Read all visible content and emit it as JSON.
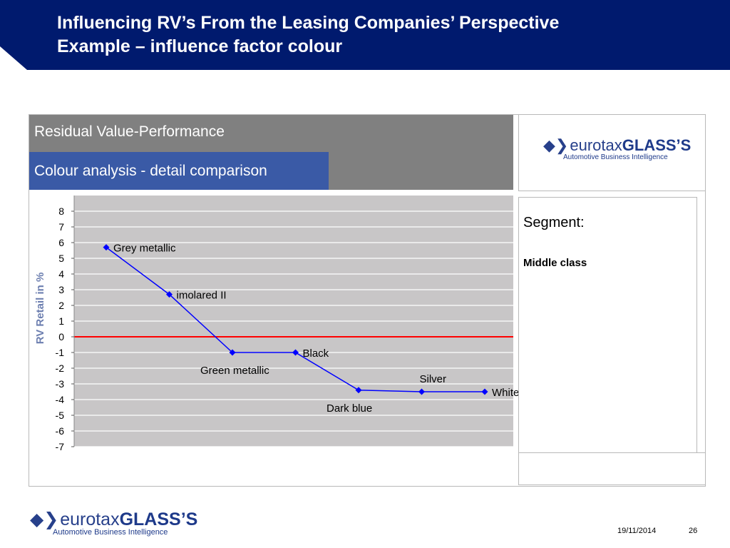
{
  "slide": {
    "title_line1": "Influencing RV’s From the Leasing Companies’ Perspective",
    "title_line2": "Example – influence factor colour",
    "date": "19/11/2014",
    "page_number": "26"
  },
  "panel": {
    "heading": "Residual Value-Performance",
    "subheading": "Colour analysis - detail comparison",
    "segment_label": "Segment:",
    "segment_value": "Middle class"
  },
  "logo": {
    "mark": "◆❯",
    "word1": "eurotax",
    "word2": "GLASS’S",
    "tagline": "Automotive Business Intelligence",
    "icon": "chevron-logo-icon"
  },
  "colors": {
    "header_bg": "#001a6e",
    "grey_header": "#808080",
    "blue_bar": "#3a5aa6",
    "plot_bg": "#c8c6c7",
    "series_line": "#0000ff",
    "zero_line": "#ff0000"
  },
  "chart_data": {
    "type": "line",
    "ylabel": "RV Retail in %",
    "ylim": [
      -7,
      8
    ],
    "yticks": [
      "8",
      "7",
      "6",
      "5",
      "4",
      "3",
      "2",
      "1",
      "0",
      "-1",
      "-2",
      "-3",
      "-4",
      "-5",
      "-6",
      "-7"
    ],
    "grid": true,
    "reference_line": 0,
    "points": [
      {
        "label": "Grey metallic",
        "value": 5.7,
        "label_pos": "right"
      },
      {
        "label": "imolared II",
        "value": 2.7,
        "label_pos": "right"
      },
      {
        "label": "Green metallic",
        "value": -1.0,
        "label_pos": "below"
      },
      {
        "label": "Black",
        "value": -1.0,
        "label_pos": "right"
      },
      {
        "label": "Dark blue",
        "value": -3.4,
        "label_pos": "below"
      },
      {
        "label": "Silver",
        "value": -3.5,
        "label_pos": "above"
      },
      {
        "label": "White",
        "value": -3.5,
        "label_pos": "right"
      }
    ]
  }
}
